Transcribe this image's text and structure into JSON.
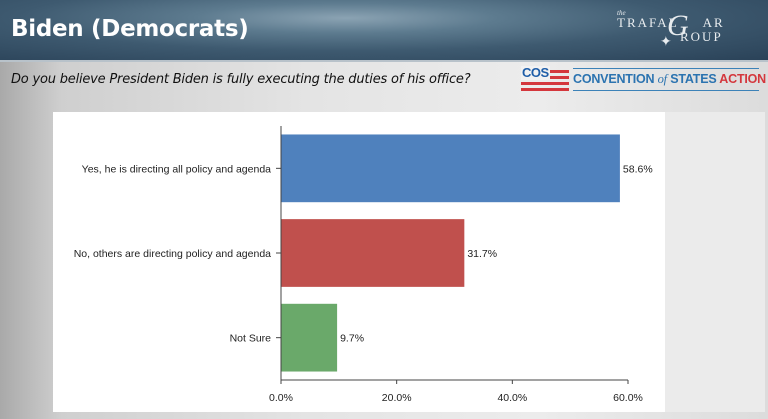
{
  "header": {
    "title": "Biden (Democrats)",
    "logo": {
      "the": "the",
      "line1": "TRAFAL",
      "g": "G",
      "line1b": "AR",
      "line2": "ROUP"
    }
  },
  "question": "Do you believe President Biden is fully executing the duties of his office?",
  "sponsor": {
    "abbr": "COS",
    "name_a": "CONVENTION ",
    "name_of": "of",
    "name_b": " STATES ",
    "name_c": "ACTION"
  },
  "chart_data": {
    "type": "bar",
    "orientation": "horizontal",
    "title": "",
    "categories": [
      "Yes, he is directing all policy and agenda",
      "No, others are directing policy and agenda",
      "Not Sure"
    ],
    "values": [
      58.6,
      31.7,
      9.7
    ],
    "value_labels": [
      "58.6%",
      "31.7%",
      "9.7%"
    ],
    "colors": [
      "#4f81bd",
      "#c0504d",
      "#6aa96a"
    ],
    "xlim": [
      0,
      60
    ],
    "xticks": [
      0,
      20,
      40,
      60
    ],
    "xtick_labels": [
      "0.0%",
      "20.0%",
      "40.0%",
      "60.0%"
    ],
    "xlabel": "",
    "ylabel": "",
    "grid": false,
    "legend": "none"
  }
}
